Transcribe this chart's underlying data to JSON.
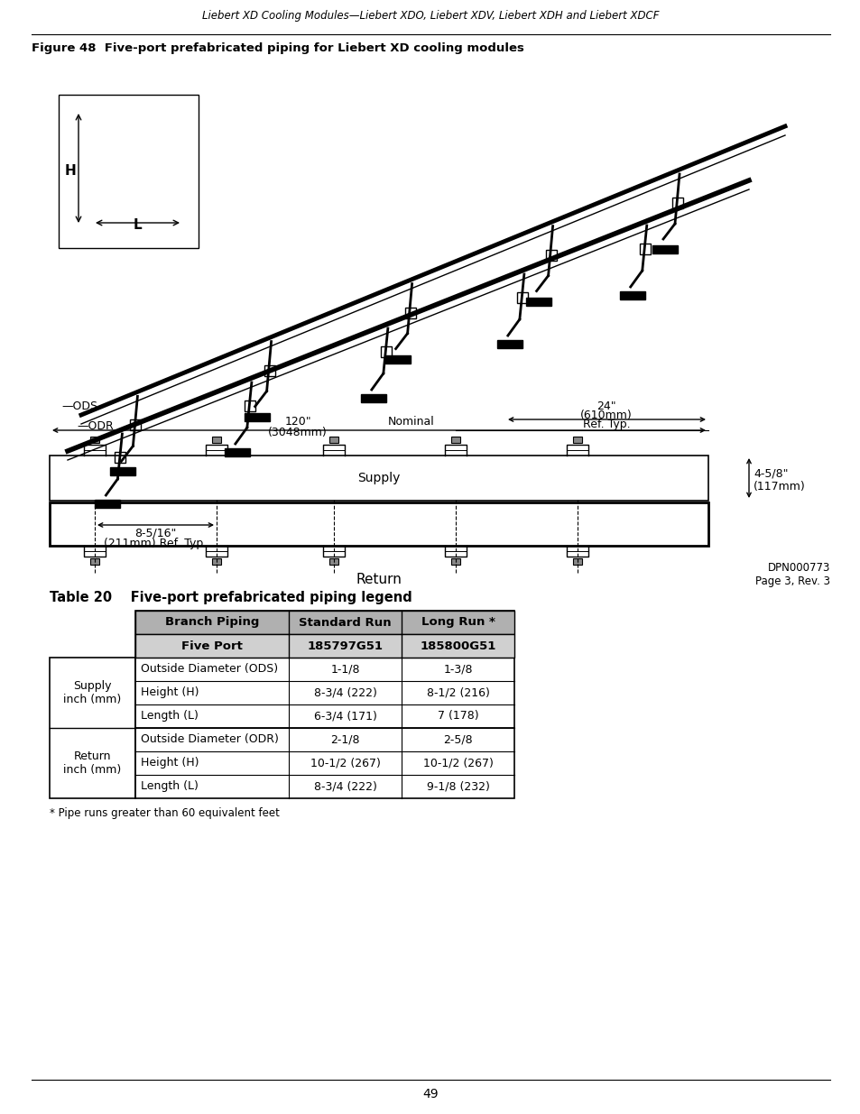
{
  "header_italic": "Liebert XD Cooling Modules—Liebert XDO, Liebert XDV, Liebert XDH and Liebert XDCF",
  "figure_caption": "Figure 48  Five-port prefabricated piping for Liebert XD cooling modules",
  "table_title": "Table 20    Five-port prefabricated piping legend",
  "table_headers_row1": [
    "Branch Piping",
    "Standard Run",
    "Long Run *"
  ],
  "table_headers_row2": [
    "Five Port",
    "185797G51",
    "185800G51"
  ],
  "supply_rows": [
    [
      "Outside Diameter (ODS)",
      "1-1/8",
      "1-3/8"
    ],
    [
      "Height (H)",
      "8-3/4 (222)",
      "8-1/2 (216)"
    ],
    [
      "Length (L)",
      "6-3/4 (171)",
      "7 (178)"
    ]
  ],
  "return_rows": [
    [
      "Outside Diameter (ODR)",
      "2-1/8",
      "2-5/8"
    ],
    [
      "Height (H)",
      "10-1/2 (267)",
      "10-1/2 (267)"
    ],
    [
      "Length (L)",
      "8-3/4 (222)",
      "9-1/8 (232)"
    ]
  ],
  "supply_label": "Supply\ninch (mm)",
  "return_label": "Return\ninch (mm)",
  "footnote": "* Pipe runs greater than 60 equivalent feet",
  "page_number": "49",
  "dpn_text": "DPN000773\nPage 3, Rev. 3",
  "bg_color": "#ffffff",
  "text_color": "#000000"
}
